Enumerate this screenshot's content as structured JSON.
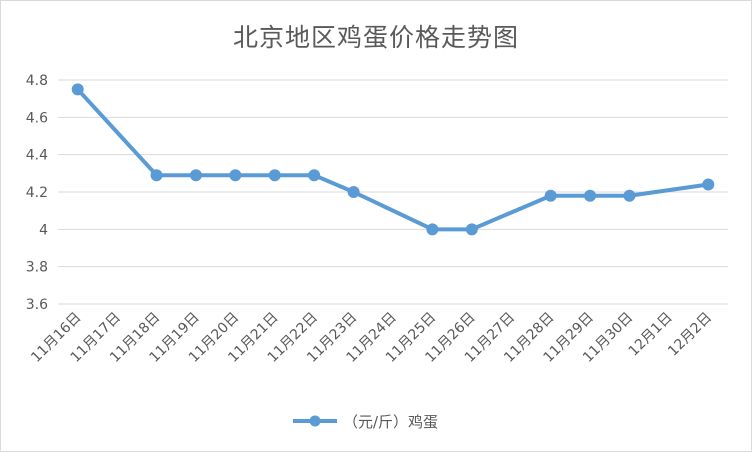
{
  "chart_data": {
    "type": "line",
    "title": "北京地区鸡蛋价格走势图",
    "xlabel": "",
    "ylabel": "",
    "categories": [
      "11月16日",
      "11月17日",
      "11月18日",
      "11月19日",
      "11月20日",
      "11月21日",
      "11月22日",
      "11月23日",
      "11月24日",
      "11月25日",
      "11月26日",
      "11月27日",
      "11月28日",
      "11月29日",
      "11月30日",
      "12月1日",
      "12月2日"
    ],
    "series": [
      {
        "name": "（元/斤）鸡蛋",
        "values": [
          4.75,
          null,
          4.29,
          4.29,
          4.29,
          4.29,
          4.29,
          4.2,
          null,
          4.0,
          4.0,
          null,
          4.18,
          4.18,
          4.18,
          null,
          4.24
        ],
        "color": "#5b9bd5"
      }
    ],
    "ylim": [
      3.6,
      4.8
    ],
    "yticks": [
      "3.6",
      "3.8",
      "4",
      "4.2",
      "4.4",
      "4.6",
      "4.8"
    ],
    "grid": true,
    "legend": "bottom"
  }
}
